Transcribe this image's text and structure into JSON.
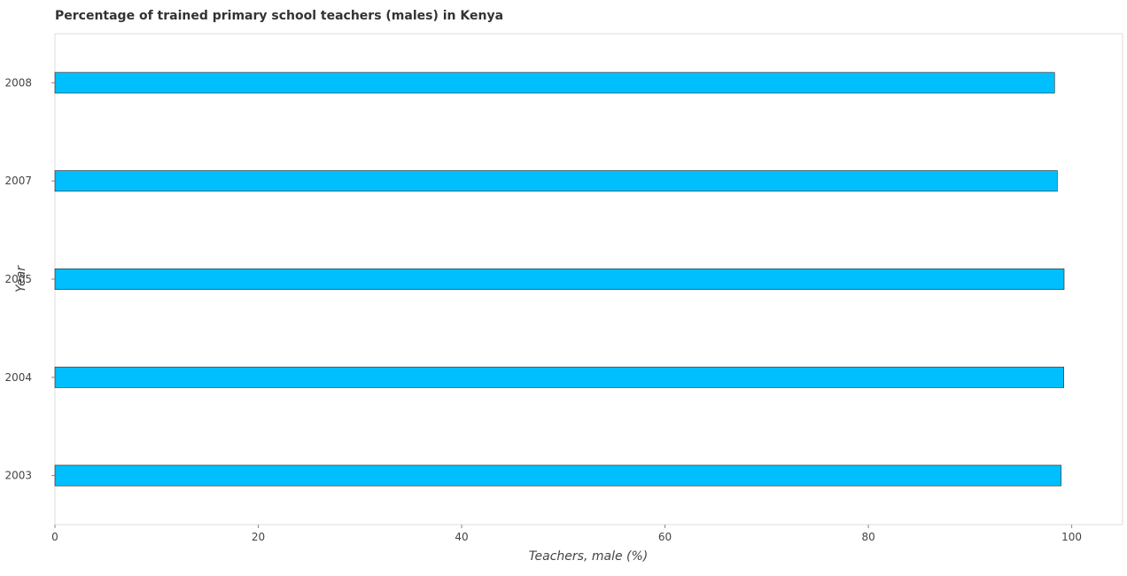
{
  "chart_data": {
    "type": "bar",
    "orientation": "horizontal",
    "title": "Percentage of trained primary school teachers (males) in Kenya",
    "xlabel": "Teachers, male (%)",
    "ylabel": "Year",
    "categories": [
      "2003",
      "2004",
      "2005",
      "2007",
      "2008"
    ],
    "values": [
      98.95,
      99.22,
      99.25,
      98.58,
      98.31
    ],
    "xlim": [
      0,
      105
    ],
    "xticks": [
      0,
      20,
      40,
      60,
      80,
      100
    ],
    "xtick_labels": [
      "0",
      "20",
      "40",
      "60",
      "80",
      "100"
    ],
    "bar_color": "#00BFFF",
    "grid": false,
    "legend": "none"
  }
}
